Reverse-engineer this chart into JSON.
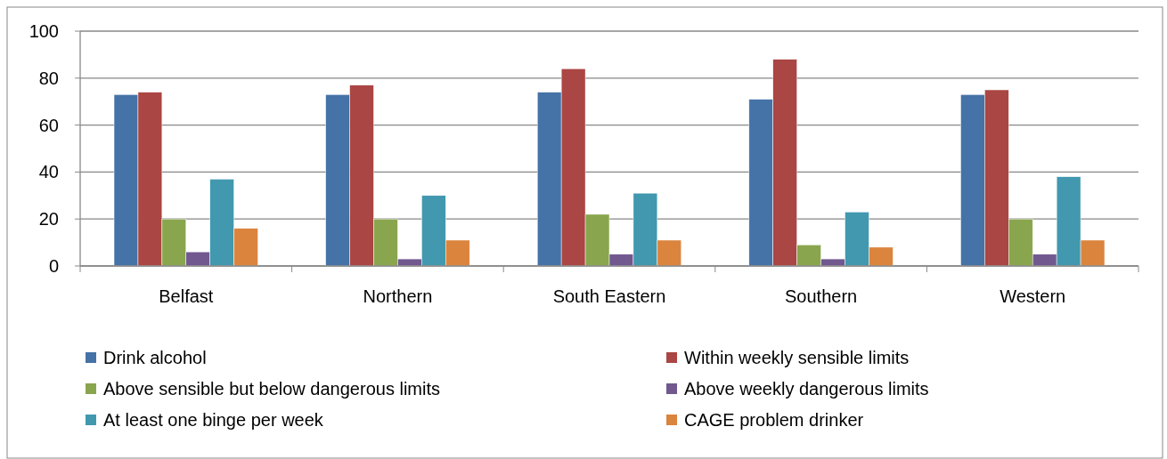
{
  "chart_data": {
    "type": "bar",
    "categories": [
      "Belfast",
      "Northern",
      "South Eastern",
      "Southern",
      "Western"
    ],
    "series": [
      {
        "name": "Drink alcohol",
        "color": "#4572a7",
        "values": [
          73,
          73,
          74,
          71,
          73
        ]
      },
      {
        "name": "Within weekly sensible limits",
        "color": "#aa4643",
        "values": [
          74,
          77,
          84,
          88,
          75
        ]
      },
      {
        "name": "Above sensible but below dangerous limits",
        "color": "#89a54e",
        "values": [
          20,
          20,
          22,
          9,
          20
        ]
      },
      {
        "name": "Above weekly dangerous limits",
        "color": "#71588f",
        "values": [
          6,
          3,
          5,
          3,
          5
        ]
      },
      {
        "name": "At least one binge per week",
        "color": "#4198af",
        "values": [
          37,
          30,
          31,
          23,
          38
        ]
      },
      {
        "name": "CAGE problem drinker",
        "color": "#db843d",
        "values": [
          16,
          11,
          11,
          8,
          11
        ]
      }
    ],
    "ylim": [
      0,
      100
    ],
    "yticks": [
      0,
      20,
      40,
      60,
      80,
      100
    ],
    "grid": "y",
    "legend": "bottom"
  }
}
